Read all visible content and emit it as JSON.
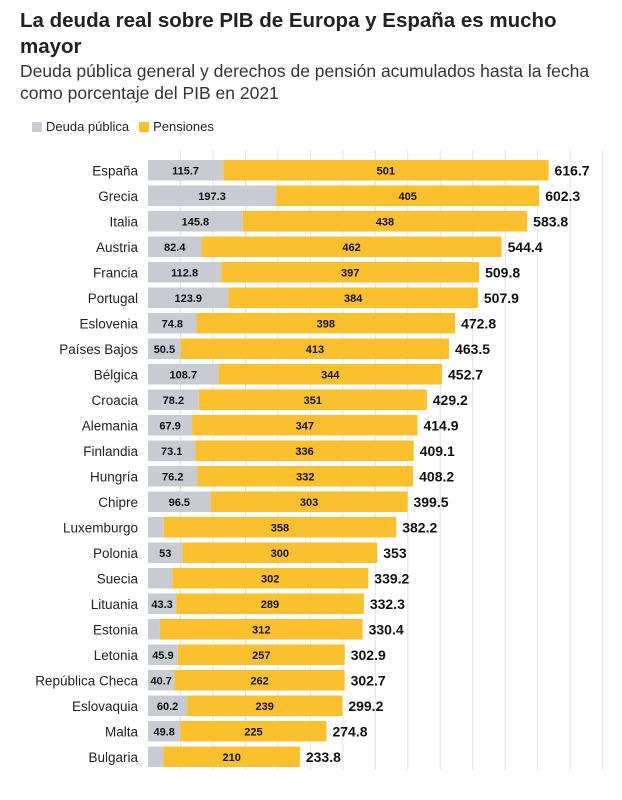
{
  "title": "La deuda real sobre PIB de Europa y España es mucho mayor",
  "subtitle": "Deuda pública general y derechos de pensión acumulados hasta la fecha como porcentaje del PIB en 2021",
  "colors": {
    "debt": "#c8ccd2",
    "pension": "#fbc02d",
    "grid": "#e2e2e2"
  },
  "chart_data": {
    "type": "bar",
    "stacked": true,
    "orientation": "horizontal",
    "legend_position": "top-left",
    "grid": true,
    "xlim": [
      0,
      700
    ],
    "categories": [
      "España",
      "Grecia",
      "Italia",
      "Austria",
      "Francia",
      "Portugal",
      "Eslovenia",
      "Países Bajos",
      "Bélgica",
      "Croacia",
      "Alemania",
      "Finlandia",
      "Hungría",
      "Chipre",
      "Luxemburgo",
      "Polonia",
      "Suecia",
      "Lituania",
      "Estonia",
      "Letonia",
      "República Checa",
      "Eslovaquia",
      "Malta",
      "Bulgaria"
    ],
    "series": [
      {
        "name": "Deuda pública",
        "values": [
          115.7,
          197.3,
          145.8,
          82.4,
          112.8,
          123.9,
          74.8,
          50.5,
          108.7,
          78.2,
          67.9,
          73.1,
          76.2,
          96.5,
          24.2,
          53,
          37.2,
          43.3,
          18.4,
          45.9,
          40.7,
          60.2,
          49.8,
          23.8
        ],
        "labels": [
          "115.7",
          "197.3",
          "145.8",
          "82.4",
          "112.8",
          "123.9",
          "74.8",
          "50.5",
          "108.7",
          "78.2",
          "67.9",
          "73.1",
          "76.2",
          "96.5",
          "",
          "53",
          "",
          "43.3",
          "",
          "45.9",
          "40.7",
          "60.2",
          "49.8",
          ""
        ]
      },
      {
        "name": "Pensiones",
        "values": [
          501,
          405,
          438,
          462,
          397,
          384,
          398,
          413,
          344,
          351,
          347,
          336,
          332,
          303,
          358,
          300,
          302,
          289,
          312,
          257,
          262,
          239,
          225,
          210
        ],
        "labels": [
          "501",
          "405",
          "438",
          "462",
          "397",
          "384",
          "398",
          "413",
          "344",
          "351",
          "347",
          "336",
          "332",
          "303",
          "358",
          "300",
          "302",
          "289",
          "312",
          "257",
          "262",
          "239",
          "225",
          "210"
        ]
      }
    ],
    "totals": [
      "616.7",
      "602.3",
      "583.8",
      "544.4",
      "509.8",
      "507.9",
      "472.8",
      "463.5",
      "452.7",
      "429.2",
      "414.9",
      "409.1",
      "408.2",
      "399.5",
      "382.2",
      "353",
      "339.2",
      "332.3",
      "330.4",
      "302.9",
      "302.7",
      "299.2",
      "274.8",
      "233.8"
    ]
  }
}
